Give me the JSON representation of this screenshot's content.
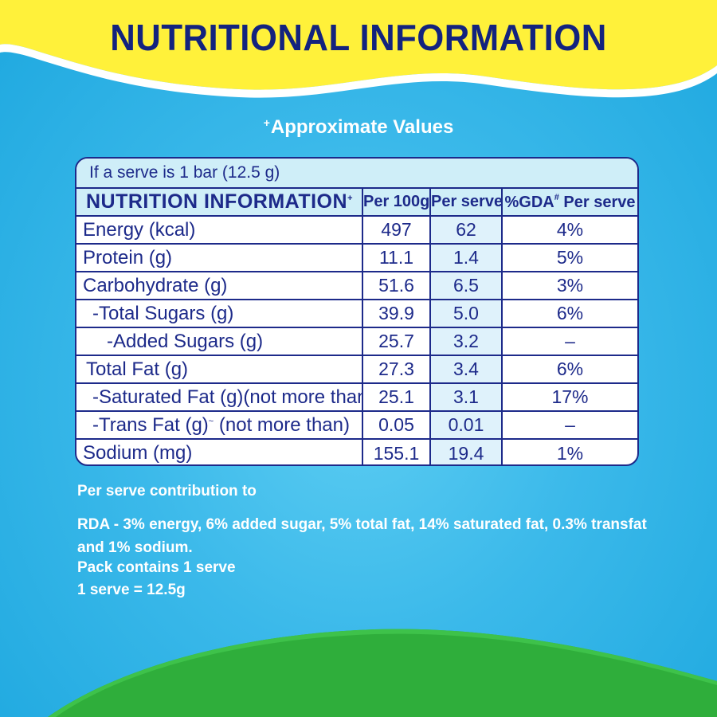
{
  "title": "NUTRITIONAL INFORMATION",
  "subtitle": {
    "marker": "+",
    "text": "Approximate Values"
  },
  "table": {
    "serve_line": "If a serve is 1 bar (12.5 g)",
    "headers": {
      "nutrition": "NUTRITION INFORMATION",
      "nutrition_marker": "+",
      "per100": "Per 100g",
      "perserve": "Per serve",
      "gda_prefix": "%GDA",
      "gda_marker": "#",
      "gda_suffix": " Per serve"
    },
    "rows": [
      {
        "label": "Energy (kcal)",
        "per100": "497",
        "perserve": "62",
        "gda": "4%"
      },
      {
        "label": "Protein (g)",
        "per100": "11.1",
        "perserve": "1.4",
        "gda": "5%"
      },
      {
        "label": "Carbohydrate (g)",
        "per100": "51.6",
        "perserve": "6.5",
        "gda": "3%"
      },
      {
        "label": "-Total Sugars (g)",
        "per100": "39.9",
        "perserve": "5.0",
        "gda": "6%"
      },
      {
        "label": "-Added Sugars (g)",
        "per100": "25.7",
        "perserve": "3.2",
        "gda": "–"
      },
      {
        "label": "Total Fat (g)",
        "per100": "27.3",
        "perserve": "3.4",
        "gda": "6%"
      },
      {
        "label": "-Saturated Fat (g)(not more than)",
        "per100": "25.1",
        "perserve": "3.1",
        "gda": "17%"
      },
      {
        "label": "-Trans Fat (g)",
        "label_marker": "~",
        "label_suffix": " (not more than)",
        "per100": "0.05",
        "perserve": "0.01",
        "gda": "–"
      },
      {
        "label": "Sodium (mg)",
        "per100": "155.1",
        "perserve": "19.4",
        "gda": "1%"
      }
    ]
  },
  "notes": {
    "line1": "Per serve contribution to",
    "line2": "RDA - 3% energy, 6% added sugar, 5% total fat, 14% saturated fat, 0.3% transfat and 1% sodium.",
    "line3": "Pack contains 1 serve",
    "line4": "1 serve = 12.5g"
  },
  "colors": {
    "navy": "#1d2a8a",
    "title_navy": "#13237e",
    "yellow": "#fff13a",
    "sky": "#3bb9ea",
    "green": "#2fae3b",
    "header_tint": "#cfeef8"
  }
}
